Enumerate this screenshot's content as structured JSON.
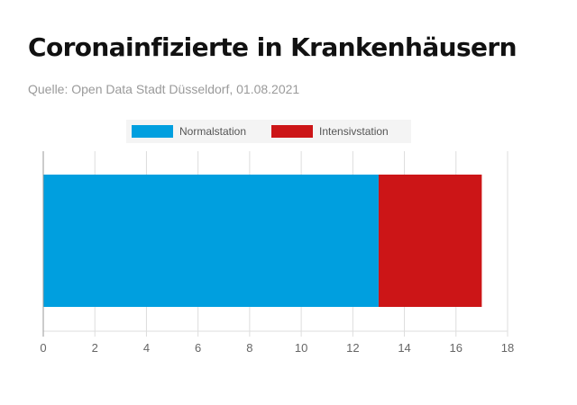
{
  "header": {
    "title": "Coronainfizierte in Krankenhäusern",
    "subtitle": "Quelle: Open Data Stadt Düsseldorf, 01.08.2021"
  },
  "colors": {
    "normal": "#009fdf",
    "intensive": "#cc1517",
    "grid": "#dddddd",
    "axis": "#999999"
  },
  "chart_data": {
    "type": "bar",
    "orientation": "horizontal",
    "stacked": true,
    "categories": [
      ""
    ],
    "series": [
      {
        "name": "Normalstation",
        "values": [
          13
        ],
        "color": "#009fdf"
      },
      {
        "name": "Intensivstation",
        "values": [
          4
        ],
        "color": "#cc1517"
      }
    ],
    "xlim": [
      0,
      18
    ],
    "xticks": [
      "0",
      "2",
      "4",
      "6",
      "8",
      "10",
      "12",
      "14",
      "16",
      "18"
    ],
    "legend_position": "top-center",
    "grid": true
  }
}
